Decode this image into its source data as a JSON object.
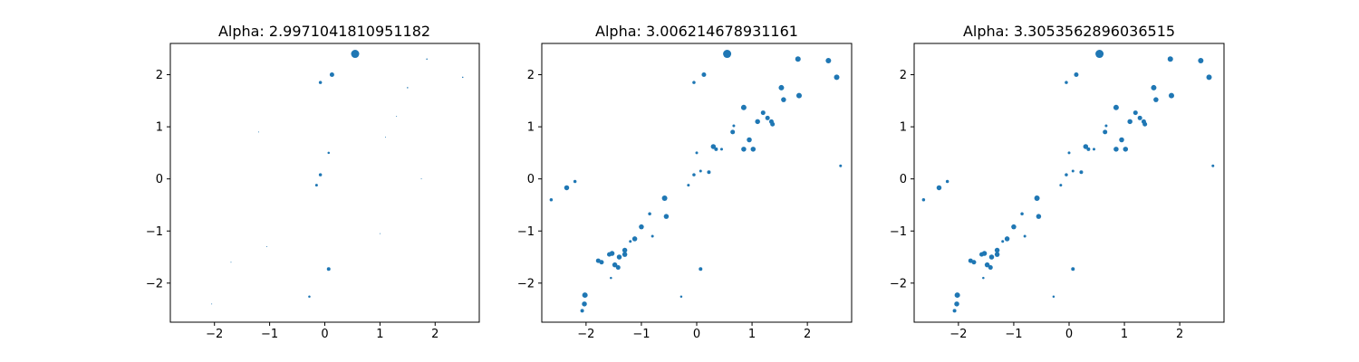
{
  "chart_data": [
    {
      "type": "scatter",
      "title": "Alpha: 2.9971041810951182",
      "xlabel": "",
      "ylabel": "",
      "xlim": [
        -2.8,
        2.8
      ],
      "ylim": [
        -2.75,
        2.6
      ],
      "xticks": [
        -2,
        -1,
        0,
        1,
        2
      ],
      "yticks": [
        -2,
        -1,
        0,
        1,
        2
      ],
      "xtick_labels": [
        "−2",
        "−1",
        "0",
        "1",
        "2"
      ],
      "ytick_labels": [
        "−2",
        "−1",
        "0",
        "1",
        "2"
      ],
      "grid": false,
      "color": "#1f77b4",
      "x": [
        0.55,
        0.13,
        -0.08,
        0.07,
        -0.08,
        -0.15,
        0.07,
        -0.28,
        1.5,
        1.85,
        2.5,
        1.3,
        1.1,
        -1.2,
        -1.7,
        1.0,
        -2.05,
        -1.05,
        1.75
      ],
      "y": [
        2.4,
        2.0,
        1.85,
        0.5,
        0.08,
        -0.12,
        -1.73,
        -2.26,
        1.75,
        2.3,
        1.95,
        1.2,
        0.8,
        0.9,
        -1.6,
        -1.05,
        -2.4,
        -1.3,
        0.0
      ],
      "sizes": [
        9,
        5,
        3.5,
        2.5,
        3.5,
        3,
        4,
        2.5,
        1.5,
        1.5,
        1.5,
        1,
        1,
        1,
        1,
        1,
        1,
        1,
        1
      ]
    },
    {
      "type": "scatter",
      "title": "Alpha: 3.006214678931161",
      "xlabel": "",
      "ylabel": "",
      "xlim": [
        -2.8,
        2.8
      ],
      "ylim": [
        -2.75,
        2.6
      ],
      "xticks": [
        -2,
        -1,
        0,
        1,
        2
      ],
      "yticks": [
        -2,
        -1,
        0,
        1,
        2
      ],
      "xtick_labels": [
        "−2",
        "−1",
        "0",
        "1",
        "2"
      ],
      "ytick_labels": [
        "−2",
        "−1",
        "0",
        "1",
        "2"
      ],
      "grid": false,
      "color": "#1f77b4",
      "x": [
        0.55,
        0.13,
        -0.05,
        1.83,
        2.38,
        2.53,
        1.85,
        1.53,
        1.57,
        0.85,
        1.2,
        1.28,
        1.35,
        1.37,
        0.67,
        0.65,
        1.1,
        0.95,
        0.85,
        1.02,
        0.3,
        0.35,
        0.45,
        0.0,
        -0.05,
        0.22,
        0.07,
        -0.15,
        -0.58,
        -0.55,
        -1.0,
        -0.85,
        -1.12,
        -0.8,
        -1.2,
        -1.3,
        -1.3,
        -1.4,
        -1.48,
        -1.53,
        -1.58,
        -1.72,
        -1.78,
        -1.42,
        -2.02,
        -2.03,
        -2.07,
        -2.35,
        -2.2,
        -2.63,
        0.07,
        -0.28,
        2.6,
        -1.55
      ],
      "y": [
        2.4,
        2.0,
        1.85,
        2.3,
        2.27,
        1.95,
        1.6,
        1.75,
        1.52,
        1.37,
        1.27,
        1.17,
        1.1,
        1.05,
        1.02,
        0.9,
        1.1,
        0.75,
        0.57,
        0.57,
        0.62,
        0.57,
        0.57,
        0.5,
        0.08,
        0.13,
        0.15,
        -0.12,
        -0.37,
        -0.72,
        -0.92,
        -0.67,
        -1.15,
        -1.1,
        -1.2,
        -1.37,
        -1.45,
        -1.5,
        -1.65,
        -1.43,
        -1.45,
        -1.6,
        -1.57,
        -1.7,
        -2.23,
        -2.4,
        -2.53,
        -0.17,
        -0.05,
        -0.4,
        -1.73,
        -2.26,
        0.25,
        -1.9
      ],
      "sizes": [
        9,
        5,
        3.5,
        6,
        6,
        6,
        6,
        6,
        5.5,
        6,
        5,
        5,
        5,
        5,
        3,
        5,
        5.5,
        5.5,
        5.5,
        5.5,
        5.5,
        4,
        3,
        3,
        3.5,
        4,
        3,
        3,
        6,
        5.5,
        5.5,
        3.5,
        5.5,
        3,
        3,
        5.5,
        5.5,
        5.5,
        5.5,
        5.5,
        5,
        5,
        5,
        5,
        6,
        5.5,
        4,
        5.5,
        3.5,
        3.5,
        4,
        2.5,
        3,
        2.5
      ]
    },
    {
      "type": "scatter",
      "title": "Alpha: 3.3053562896036515",
      "xlabel": "",
      "ylabel": "",
      "xlim": [
        -2.8,
        2.8
      ],
      "ylim": [
        -2.75,
        2.6
      ],
      "xticks": [
        -2,
        -1,
        0,
        1,
        2
      ],
      "yticks": [
        -2,
        -1,
        0,
        1,
        2
      ],
      "xtick_labels": [
        "−2",
        "−1",
        "0",
        "1",
        "2"
      ],
      "ytick_labels": [
        "−2",
        "−1",
        "0",
        "1",
        "2"
      ],
      "grid": false,
      "color": "#1f77b4",
      "x": [
        0.55,
        0.13,
        -0.05,
        1.83,
        2.38,
        2.53,
        1.85,
        1.53,
        1.57,
        0.85,
        1.2,
        1.28,
        1.35,
        1.37,
        0.67,
        0.65,
        1.1,
        0.95,
        0.85,
        1.02,
        0.3,
        0.35,
        0.45,
        0.0,
        -0.05,
        0.22,
        0.07,
        -0.15,
        -0.58,
        -0.55,
        -1.0,
        -0.85,
        -1.12,
        -0.8,
        -1.2,
        -1.3,
        -1.3,
        -1.4,
        -1.48,
        -1.53,
        -1.58,
        -1.72,
        -1.78,
        -1.42,
        -2.02,
        -2.03,
        -2.07,
        -2.35,
        -2.2,
        -2.63,
        0.07,
        -0.28,
        2.6,
        -1.55
      ],
      "y": [
        2.4,
        2.0,
        1.85,
        2.3,
        2.27,
        1.95,
        1.6,
        1.75,
        1.52,
        1.37,
        1.27,
        1.17,
        1.1,
        1.05,
        1.02,
        0.9,
        1.1,
        0.75,
        0.57,
        0.57,
        0.62,
        0.57,
        0.57,
        0.5,
        0.08,
        0.13,
        0.15,
        -0.12,
        -0.37,
        -0.72,
        -0.92,
        -0.67,
        -1.15,
        -1.1,
        -1.2,
        -1.37,
        -1.45,
        -1.5,
        -1.65,
        -1.43,
        -1.45,
        -1.6,
        -1.57,
        -1.7,
        -2.23,
        -2.4,
        -2.53,
        -0.17,
        -0.05,
        -0.4,
        -1.73,
        -2.26,
        0.25,
        -1.9
      ],
      "sizes": [
        9,
        5,
        3.5,
        6,
        6,
        6,
        6,
        6,
        5.5,
        6,
        5,
        5,
        5,
        5,
        3,
        5,
        5.5,
        5.5,
        5.5,
        5.5,
        5.5,
        4,
        3,
        3,
        3.5,
        4,
        3,
        3,
        6,
        5.5,
        5.5,
        3.5,
        5.5,
        3,
        3,
        5.5,
        5.5,
        5.5,
        5.5,
        5.5,
        5,
        5,
        5,
        5,
        6,
        5.5,
        4,
        5.5,
        3.5,
        3.5,
        4,
        2.5,
        3,
        2.5
      ]
    }
  ]
}
